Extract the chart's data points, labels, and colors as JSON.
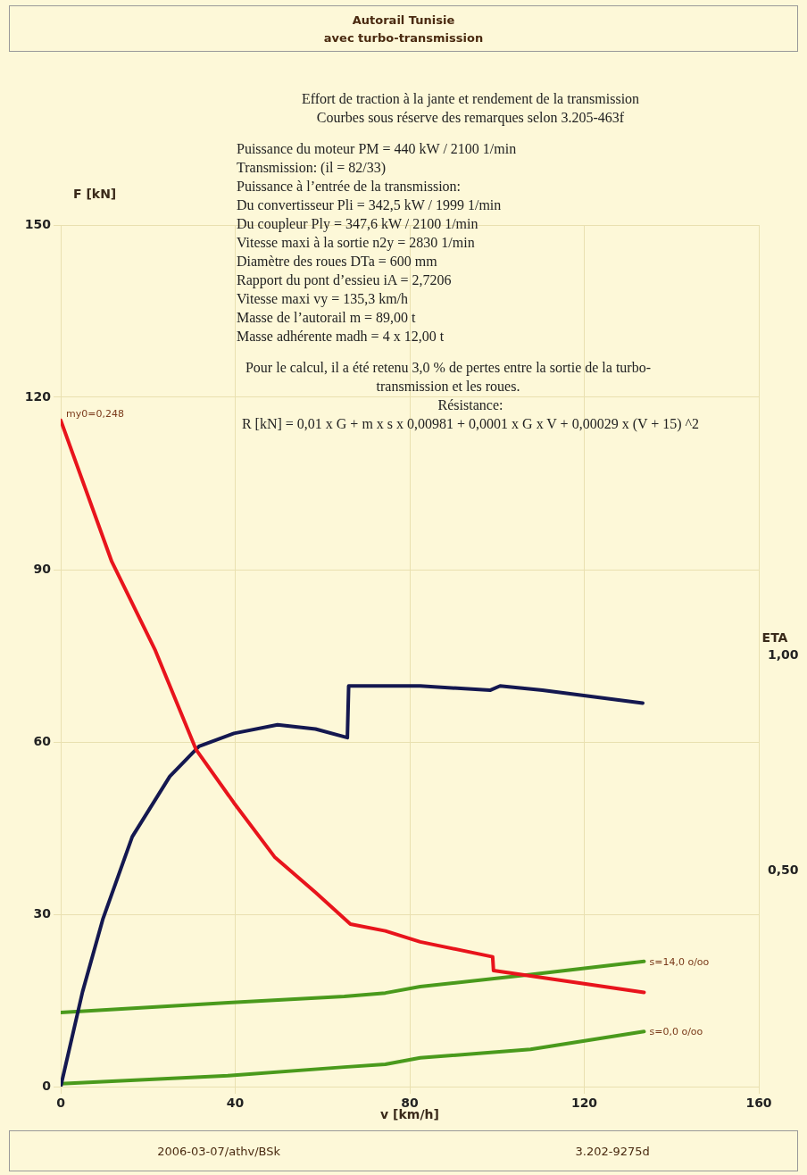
{
  "chart_data": {
    "type": "line",
    "title": "Effort de traction à la jante et rendement de la transmission",
    "subtitle": "Courbes sous réserve des remarques selon 3.205-463f",
    "xlabel": "v [km/h]",
    "ylabel": "F [kN]",
    "y2label": "ETA",
    "xlim": [
      0,
      160
    ],
    "xticks": [
      0,
      40,
      80,
      120,
      160
    ],
    "ylim": [
      0,
      150
    ],
    "yticks": [
      0,
      30,
      60,
      90,
      120,
      150
    ],
    "y2lim": [
      0,
      2
    ],
    "y2ticks": [
      {
        "value": 0.5,
        "label": "0,50"
      },
      {
        "value": 1,
        "label": "1,00"
      }
    ],
    "grid": true,
    "legend": false,
    "marker": "none",
    "line_style": "solid",
    "series": [
      {
        "color": "#e8141c",
        "x": [
          0,
          11.7,
          21.7,
          31,
          39.7,
          49,
          58.4,
          66.4,
          74.4,
          82.4,
          99,
          99.2,
          133.7
        ],
        "values": [
          116,
          91.4,
          75.9,
          58.7,
          49.4,
          40,
          33.8,
          28.3,
          27.1,
          25.2,
          22.6,
          20.2,
          16.4
        ]
      },
      {
        "color": "#141850",
        "axis": "y2",
        "x": [
          0,
          5,
          9.7,
          16.4,
          25,
          31.7,
          39.7,
          49.7,
          58.4,
          65.7,
          66,
          74.4,
          82.4,
          98.4,
          100.7,
          110.4,
          133.4
        ],
        "values": [
          0,
          0.22,
          0.39,
          0.58,
          0.72,
          0.79,
          0.82,
          0.84,
          0.83,
          0.81,
          0.93,
          0.93,
          0.93,
          0.92,
          0.93,
          0.92,
          0.89
        ]
      },
      {
        "name": "s=14,0 o/oo",
        "color": "#4a9a1c",
        "x": [
          0,
          38.4,
          65,
          74.4,
          82.4,
          107.7,
          133.7
        ],
        "values": [
          12.9,
          14.6,
          15.7,
          16.3,
          17.4,
          19.5,
          21.8
        ]
      },
      {
        "name": "s=0,0 o/oo",
        "color": "#4a9a1c",
        "x": [
          0,
          38.4,
          65,
          74.4,
          82.4,
          107.7,
          133.7
        ],
        "values": [
          0.5,
          1.9,
          3.4,
          3.9,
          5,
          6.5,
          9.6
        ]
      }
    ],
    "annotations": [
      "Autorail Tunisie",
      "avec turbo-transmission",
      "Puissance du moteur PM = 440 kW / 2100 1/min",
      "Transmission: (il = 82/33)",
      "Puissance à l’entrée de la transmission:",
      "Du convertisseur Pli = 342,5 kW / 1999 1/min",
      "Du coupleur Ply = 347,6 kW / 2100 1/min",
      "Vitesse maxi à la sortie n2y = 2830 1/min",
      "Diamètre des roues DTa = 600 mm",
      "Rapport du pont d’essieu iA = 2,7206",
      "Vitesse maxi vy = 135,3 km/h",
      "Masse de l’autorail m = 89,00 t",
      "Masse adhérente madh = 4 x 12,00 t",
      "Pour le calcul, il a été retenu 3,0 % de pertes entre la sortie de la turbo-transmission et les roues.",
      "Résistance:",
      "R [kN] = 0,01 x G + m x s x 0,00981 + 0,0001 x G x V + 0,00029 x (V + 15) ^2",
      {
        "text": "my0=0,248",
        "x": 0,
        "y": 116
      },
      "2006-03-07/athv/BSk",
      "3.202-9275d"
    ]
  }
}
